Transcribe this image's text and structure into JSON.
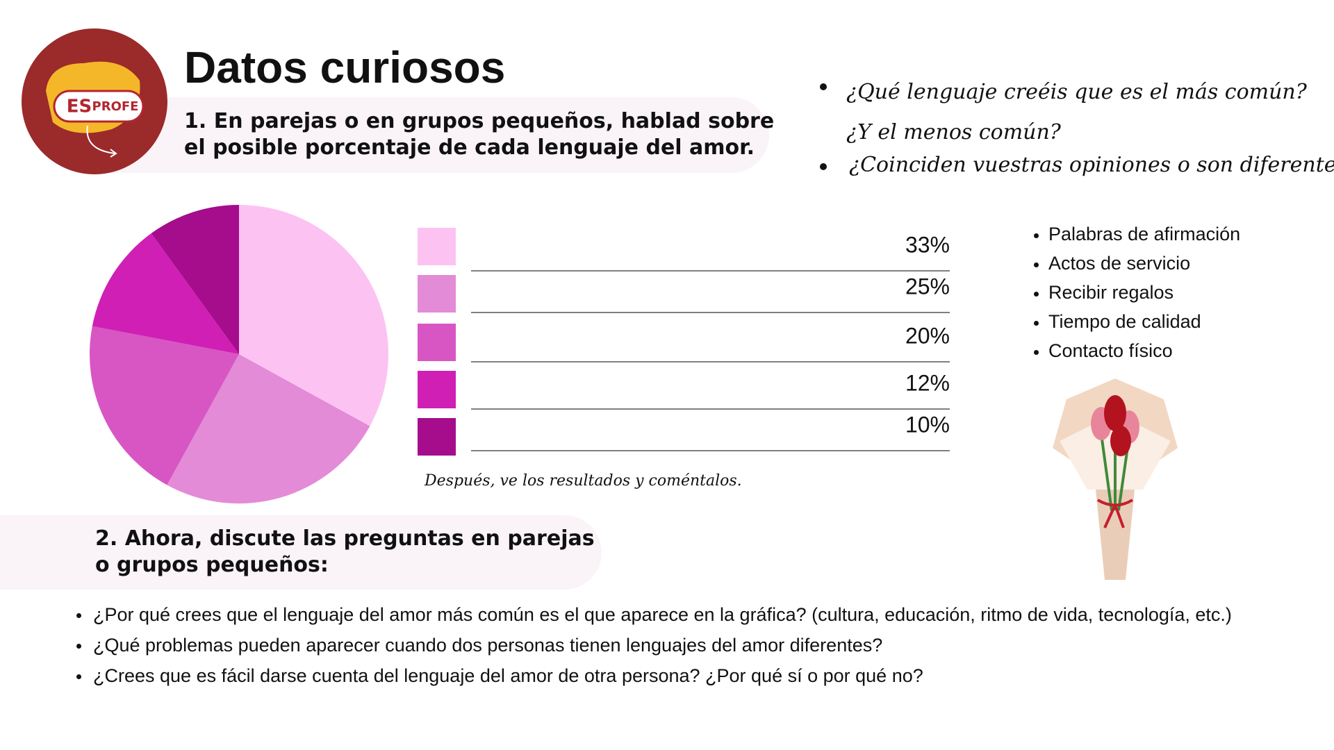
{
  "header": {
    "title": "Datos curiosos",
    "logo": {
      "left": "ES",
      "right": "PROFE"
    }
  },
  "task1": {
    "lines": [
      "1. En parejas o en grupos pequeños, hablad sobre",
      "el posible porcentaje de cada lenguaje del amor."
    ]
  },
  "questions_right": [
    "¿Qué lenguaje creéis que es el más común? ¿Y el menos común?",
    "¿Coinciden vuestras opiniones o son diferentes?"
  ],
  "chart_data": {
    "type": "pie",
    "values": [
      33,
      25,
      20,
      12,
      10
    ],
    "value_labels": [
      "33%",
      "25%",
      "20%",
      "12%",
      "10%"
    ],
    "colors": [
      "#fcc3f2",
      "#e38bd6",
      "#d856c4",
      "#d01fb5",
      "#a50d8c"
    ]
  },
  "note": "Después, ve los resultados y coméntalos.",
  "love_languages": [
    "Palabras de afirmación",
    "Actos de servicio",
    "Recibir regalos",
    "Tiempo de calidad",
    "Contacto físico"
  ],
  "task2": {
    "lines": [
      "2. Ahora, discute las preguntas en parejas",
      "o grupos pequeños:"
    ]
  },
  "discussion": [
    "¿Por qué crees que el lenguaje del amor más común es el que aparece en la gráfica? (cultura, educación, ritmo de vida, tecnología, etc.)",
    "¿Qué problemas pueden aparecer cuando dos personas tienen lenguajes del amor diferentes?",
    "¿Crees que es fácil darse cuenta del lenguaje del amor de otra persona? ¿Por qué sí o por qué no?"
  ]
}
